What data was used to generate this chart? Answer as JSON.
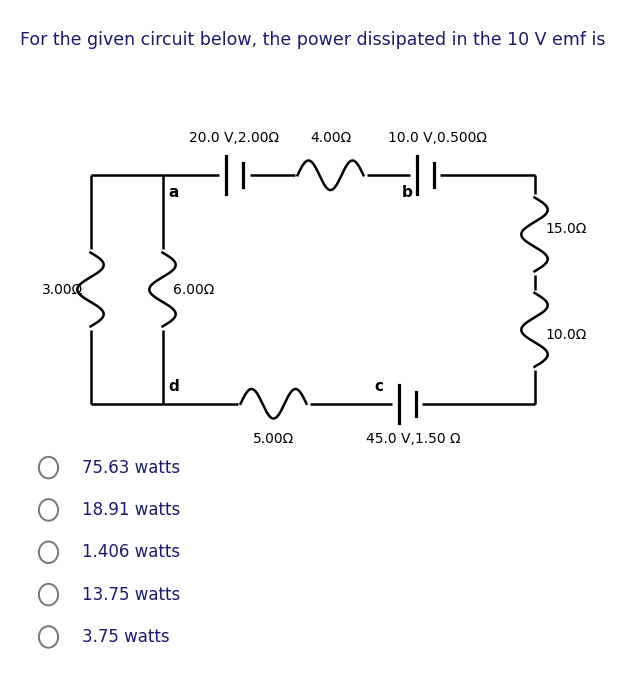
{
  "title": "For the given circuit below, the power dissipated in the 10 V emf is",
  "title_fontsize": 12.5,
  "text_color": "#1a1a6e",
  "body_color": "#000000",
  "choices": [
    "75.63 watts",
    "18.91 watts",
    "1.406 watts",
    "13.75 watts",
    "3.75 watts"
  ],
  "labels": {
    "top_left": "20.0 V,2.00Ω",
    "top_mid": "4.00Ω",
    "top_right": "10.0 V,0.500Ω",
    "right_top": "15.0Ω",
    "right_bot": "10.0Ω",
    "left_outer": "3.00Ω",
    "left_inner": "6.00Ω",
    "bot_left": "5.00Ω",
    "bot_right": "45.0 V,1.50 Ω"
  },
  "background_color": "#ffffff",
  "circuit": {
    "L": 0.13,
    "L2": 0.25,
    "R": 0.87,
    "T": 0.76,
    "B": 0.42
  }
}
